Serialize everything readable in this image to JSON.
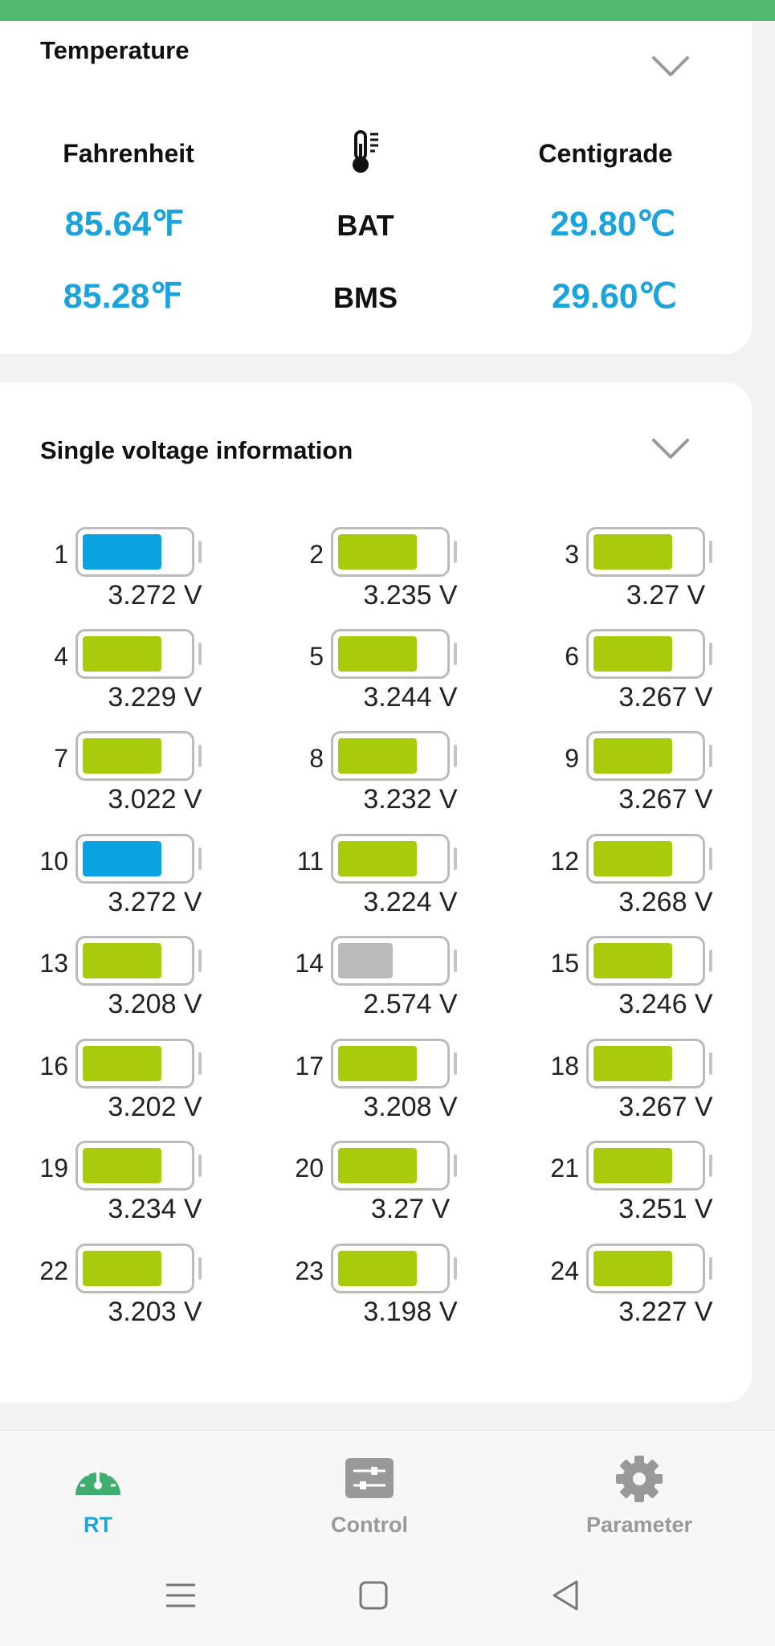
{
  "temperature": {
    "title": "Temperature",
    "fahrenheit_header": "Fahrenheit",
    "centigrade_header": "Centigrade",
    "rows": [
      {
        "label": "BAT",
        "fahrenheit": "85.64℉",
        "celsius": "29.80℃"
      },
      {
        "label": "BMS",
        "fahrenheit": "85.28℉",
        "celsius": "29.60℃"
      }
    ]
  },
  "voltage": {
    "title": "Single voltage information",
    "cells": [
      {
        "num": "1",
        "voltage": "3.272 V",
        "color": "#0aa2e0",
        "level": 0.72
      },
      {
        "num": "2",
        "voltage": "3.235 V",
        "color": "#a8cc0c",
        "level": 0.72
      },
      {
        "num": "3",
        "voltage": "3.27 V",
        "color": "#a8cc0c",
        "level": 0.72
      },
      {
        "num": "4",
        "voltage": "3.229 V",
        "color": "#a8cc0c",
        "level": 0.72
      },
      {
        "num": "5",
        "voltage": "3.244 V",
        "color": "#a8cc0c",
        "level": 0.72
      },
      {
        "num": "6",
        "voltage": "3.267 V",
        "color": "#a8cc0c",
        "level": 0.72
      },
      {
        "num": "7",
        "voltage": "3.022 V",
        "color": "#a8cc0c",
        "level": 0.72
      },
      {
        "num": "8",
        "voltage": "3.232 V",
        "color": "#a8cc0c",
        "level": 0.72
      },
      {
        "num": "9",
        "voltage": "3.267 V",
        "color": "#a8cc0c",
        "level": 0.72
      },
      {
        "num": "10",
        "voltage": "3.272 V",
        "color": "#0aa2e0",
        "level": 0.72
      },
      {
        "num": "11",
        "voltage": "3.224 V",
        "color": "#a8cc0c",
        "level": 0.72
      },
      {
        "num": "12",
        "voltage": "3.268 V",
        "color": "#a8cc0c",
        "level": 0.72
      },
      {
        "num": "13",
        "voltage": "3.208 V",
        "color": "#a8cc0c",
        "level": 0.72
      },
      {
        "num": "14",
        "voltage": "2.574 V",
        "color": "#bbbbbb",
        "level": 0.5
      },
      {
        "num": "15",
        "voltage": "3.246 V",
        "color": "#a8cc0c",
        "level": 0.72
      },
      {
        "num": "16",
        "voltage": "3.202 V",
        "color": "#a8cc0c",
        "level": 0.72
      },
      {
        "num": "17",
        "voltage": "3.208 V",
        "color": "#a8cc0c",
        "level": 0.72
      },
      {
        "num": "18",
        "voltage": "3.267 V",
        "color": "#a8cc0c",
        "level": 0.72
      },
      {
        "num": "19",
        "voltage": "3.234 V",
        "color": "#a8cc0c",
        "level": 0.72
      },
      {
        "num": "20",
        "voltage": "3.27 V",
        "color": "#a8cc0c",
        "level": 0.72
      },
      {
        "num": "21",
        "voltage": "3.251 V",
        "color": "#a8cc0c",
        "level": 0.72
      },
      {
        "num": "22",
        "voltage": "3.203 V",
        "color": "#a8cc0c",
        "level": 0.72
      },
      {
        "num": "23",
        "voltage": "3.198 V",
        "color": "#a8cc0c",
        "level": 0.72
      },
      {
        "num": "24",
        "voltage": "3.227 V",
        "color": "#a8cc0c",
        "level": 0.72
      }
    ]
  },
  "nav": {
    "items": [
      {
        "label": "RT",
        "icon": "speedometer-icon",
        "active": true
      },
      {
        "label": "Control",
        "icon": "sliders-icon",
        "active": false
      },
      {
        "label": "Parameter",
        "icon": "gear-icon",
        "active": false
      }
    ]
  },
  "colors": {
    "accent_blue": "#1aa3dd",
    "status_bar_green": "#52b872",
    "nav_active_green": "#3dae6e"
  }
}
